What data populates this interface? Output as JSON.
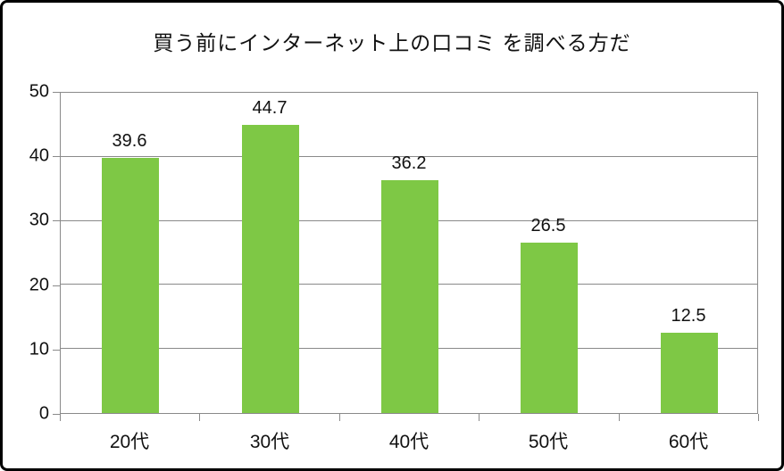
{
  "chart_data": {
    "type": "bar",
    "title": "買う前にインターネット上の口コミ を調べる方だ",
    "categories": [
      "20代",
      "30代",
      "40代",
      "50代",
      "60代"
    ],
    "values": [
      39.6,
      44.7,
      36.2,
      26.5,
      12.5
    ],
    "data_labels": [
      "39.6",
      "44.7",
      "36.2",
      "26.5",
      "12.5"
    ],
    "xlabel": "",
    "ylabel": "",
    "ylim": [
      0,
      50
    ],
    "yticks": [
      0,
      10,
      20,
      30,
      40,
      50
    ],
    "grid": true,
    "legend": "none",
    "bar_color": "#7EC845",
    "axis_color": "#8A8A8A",
    "text_color": "#111111",
    "outer_border_color": "#000000"
  }
}
